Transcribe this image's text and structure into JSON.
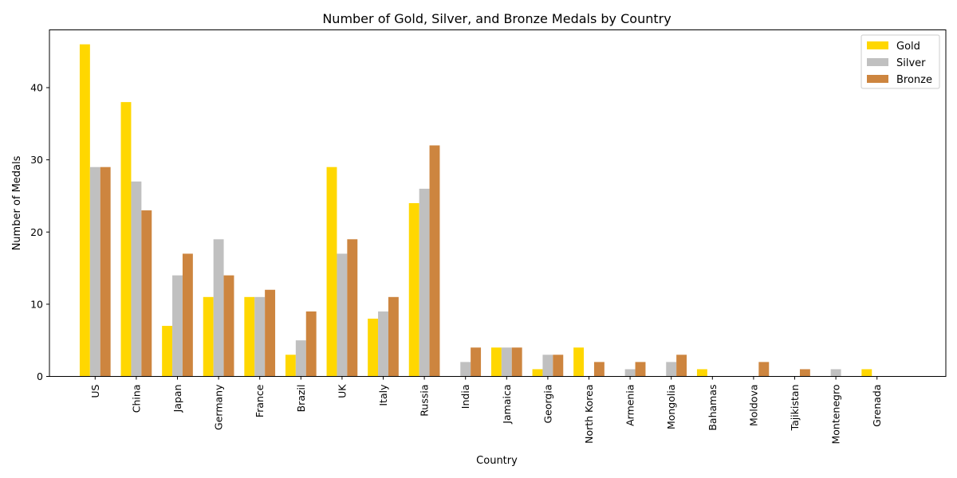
{
  "chart_data": {
    "type": "bar",
    "title": "Number of Gold, Silver, and Bronze Medals by Country",
    "xlabel": "Country",
    "ylabel": "Number of Medals",
    "ylim": [
      0,
      48
    ],
    "yticks": [
      0,
      10,
      20,
      30,
      40
    ],
    "grid": false,
    "legend": "top-right",
    "categories": [
      "US",
      "China",
      "Japan",
      "Germany",
      "France",
      "Brazil",
      "UK",
      "Italy",
      "Russia",
      "India",
      "Jamaica",
      "Georgia",
      "North Korea",
      "Armenia",
      "Mongolia",
      "Bahamas",
      "Moldova",
      "Tajikistan",
      "Montenegro",
      "Grenada"
    ],
    "series": [
      {
        "name": "Gold",
        "color": "#ffd700",
        "values": [
          46,
          38,
          7,
          11,
          11,
          3,
          29,
          8,
          24,
          0,
          4,
          1,
          4,
          0,
          0,
          1,
          0,
          0,
          0,
          1
        ]
      },
      {
        "name": "Silver",
        "color": "#c0c0c0",
        "values": [
          29,
          27,
          14,
          19,
          11,
          5,
          17,
          9,
          26,
          2,
          4,
          3,
          0,
          1,
          2,
          0,
          0,
          0,
          1,
          0
        ]
      },
      {
        "name": "Bronze",
        "color": "#cd853f",
        "values": [
          29,
          23,
          17,
          14,
          12,
          9,
          19,
          11,
          32,
          4,
          4,
          3,
          2,
          2,
          3,
          0,
          2,
          1,
          0,
          0
        ]
      }
    ]
  }
}
